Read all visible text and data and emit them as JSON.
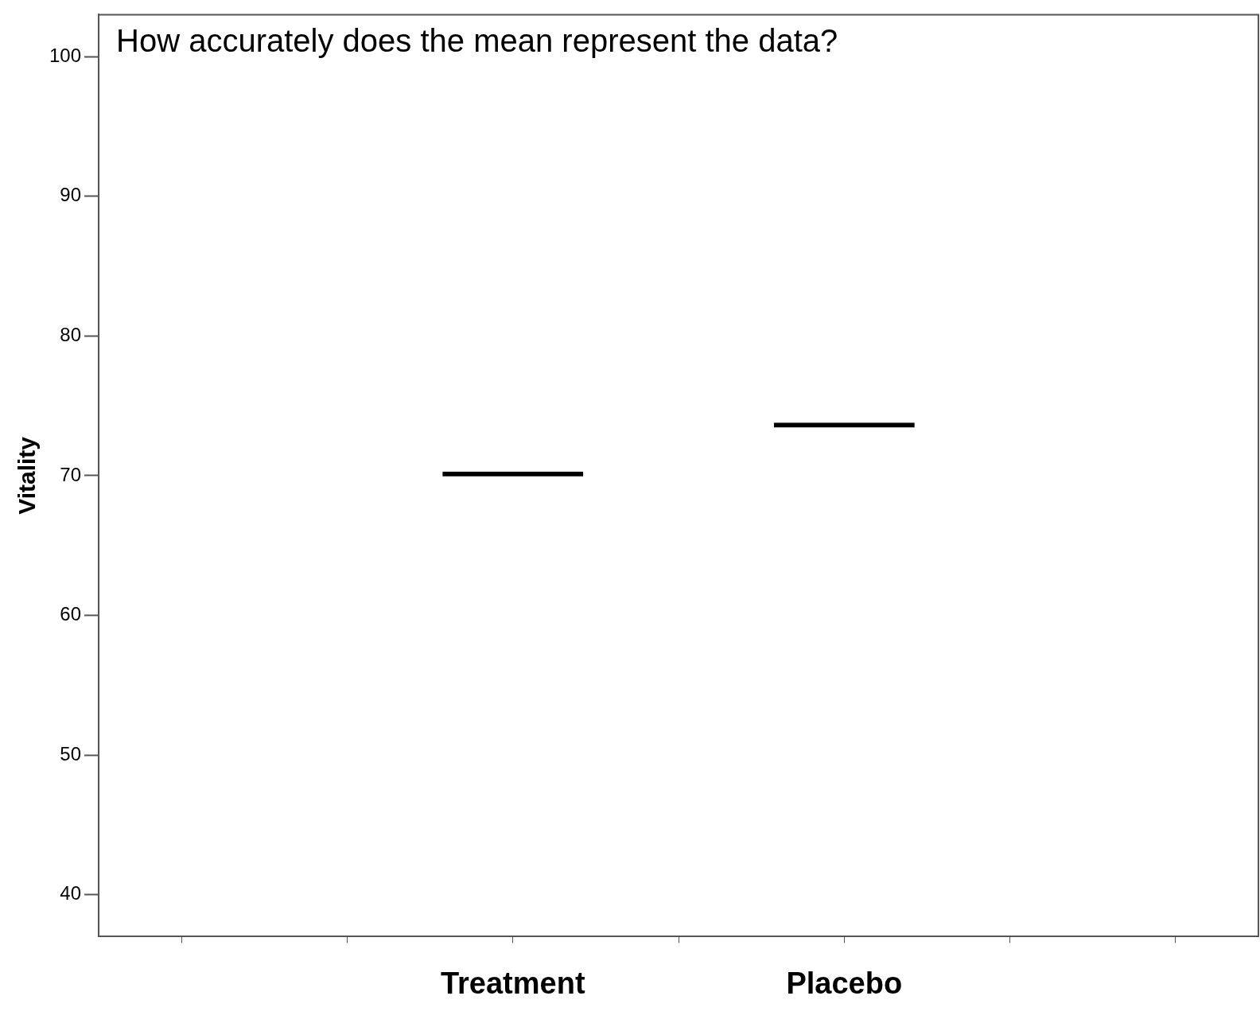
{
  "chart_data": {
    "type": "bar",
    "title": "How accurately does the mean represent the data?",
    "ylabel": "Vitality",
    "categories": [
      null,
      null,
      "Treatment",
      null,
      "Placebo",
      null,
      null
    ],
    "series": [
      {
        "color": "#000000",
        "values": [
          null,
          null,
          70.3,
          null,
          73.8,
          null,
          null
        ]
      }
    ],
    "ylim": [
      37,
      103
    ],
    "yticks": [
      40,
      50,
      60,
      70,
      80,
      90,
      100
    ],
    "grid": false,
    "legend": false
  }
}
